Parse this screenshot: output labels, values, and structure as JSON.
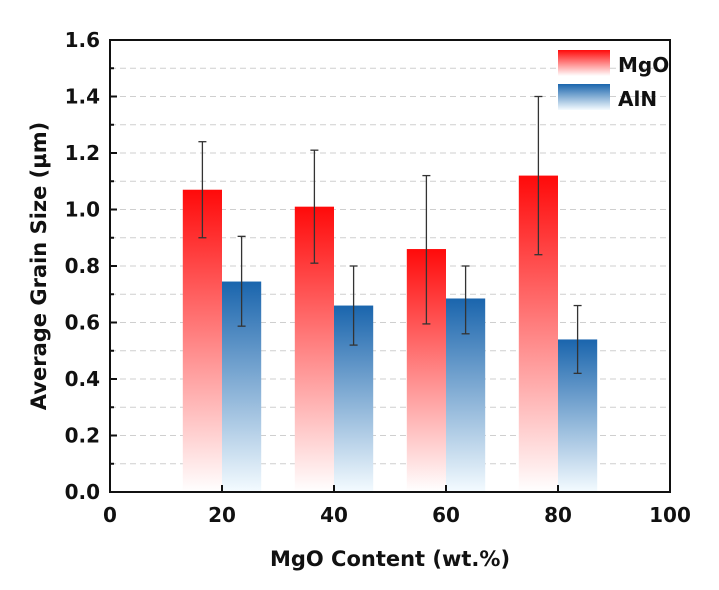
{
  "chart_data": {
    "type": "bar",
    "title": "",
    "xlabel": "MgO Content (wt.%)",
    "ylabel": "Average Grain Size (µm)",
    "xlim": [
      0,
      100
    ],
    "ylim": [
      0,
      1.6
    ],
    "xticks": [
      "0",
      "20",
      "40",
      "60",
      "80",
      "100"
    ],
    "yticks": [
      "0.0",
      "0.2",
      "0.4",
      "0.6",
      "0.8",
      "1.0",
      "1.2",
      "1.4",
      "1.6"
    ],
    "x": [
      20,
      40,
      60,
      80
    ],
    "categories": [
      "20",
      "40",
      "60",
      "80"
    ],
    "grid": true,
    "legend_position": "top-right",
    "series": [
      {
        "name": "MgO",
        "color": "#ff0000",
        "values": [
          1.07,
          1.01,
          0.86,
          1.12
        ],
        "error_low": [
          0.9,
          0.81,
          0.595,
          0.84
        ],
        "error_high": [
          1.24,
          1.21,
          1.12,
          1.4
        ]
      },
      {
        "name": "AlN",
        "color": "#1f66ad",
        "values": [
          0.745,
          0.66,
          0.685,
          0.54
        ],
        "error_low": [
          0.587,
          0.52,
          0.56,
          0.42
        ],
        "error_high": [
          0.905,
          0.8,
          0.8,
          0.66
        ]
      }
    ]
  }
}
